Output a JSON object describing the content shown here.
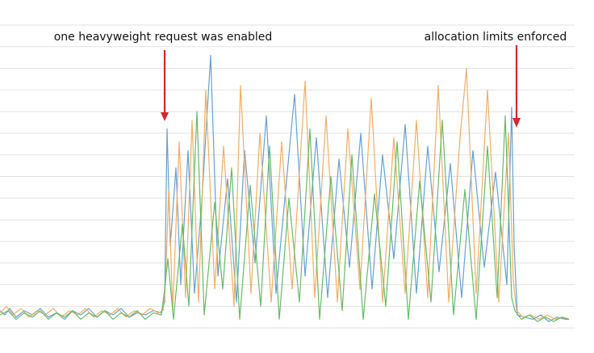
{
  "chart_data": {
    "type": "line",
    "title": "",
    "xlabel": "",
    "ylabel": "",
    "ylim": [
      0,
      100
    ],
    "grid": true,
    "legend": "none",
    "annotations": [
      {
        "text": "one heavyweight request was enabled",
        "at_x": 204
      },
      {
        "text": "allocation limits enforced",
        "at_x": 637
      }
    ],
    "colors": {
      "blue": "#5b9bd5",
      "orange": "#f4a95a",
      "green": "#5cb85c",
      "arrow": "#d9262b",
      "grid": "#e2e2e2"
    },
    "phases": [
      {
        "x_start": 0,
        "x_end": 204,
        "level": "low"
      },
      {
        "x_start": 204,
        "x_end": 637,
        "level": "high"
      },
      {
        "x_start": 637,
        "x_end": 705,
        "level": "low"
      }
    ],
    "series": [
      {
        "color": "blue",
        "values": [
          {
            "x": 0,
            "y": 8
          },
          {
            "x": 6,
            "y": 6
          },
          {
            "x": 12,
            "y": 9
          },
          {
            "x": 20,
            "y": 5
          },
          {
            "x": 30,
            "y": 8
          },
          {
            "x": 40,
            "y": 6
          },
          {
            "x": 50,
            "y": 9
          },
          {
            "x": 60,
            "y": 5
          },
          {
            "x": 70,
            "y": 7
          },
          {
            "x": 80,
            "y": 4
          },
          {
            "x": 90,
            "y": 8
          },
          {
            "x": 100,
            "y": 6
          },
          {
            "x": 110,
            "y": 9
          },
          {
            "x": 120,
            "y": 5
          },
          {
            "x": 130,
            "y": 8
          },
          {
            "x": 140,
            "y": 6
          },
          {
            "x": 150,
            "y": 9
          },
          {
            "x": 160,
            "y": 5
          },
          {
            "x": 170,
            "y": 7
          },
          {
            "x": 180,
            "y": 6
          },
          {
            "x": 190,
            "y": 8
          },
          {
            "x": 200,
            "y": 7
          },
          {
            "x": 204,
            "y": 12
          },
          {
            "x": 207,
            "y": 92
          },
          {
            "x": 211,
            "y": 38
          },
          {
            "x": 218,
            "y": 74
          },
          {
            "x": 224,
            "y": 20
          },
          {
            "x": 233,
            "y": 82
          },
          {
            "x": 241,
            "y": 16
          },
          {
            "x": 250,
            "y": 58
          },
          {
            "x": 261,
            "y": 126
          },
          {
            "x": 270,
            "y": 24
          },
          {
            "x": 282,
            "y": 69
          },
          {
            "x": 293,
            "y": 12
          },
          {
            "x": 303,
            "y": 82
          },
          {
            "x": 316,
            "y": 30
          },
          {
            "x": 330,
            "y": 98
          },
          {
            "x": 342,
            "y": 16
          },
          {
            "x": 356,
            "y": 72
          },
          {
            "x": 365,
            "y": 108
          },
          {
            "x": 378,
            "y": 24
          },
          {
            "x": 392,
            "y": 88
          },
          {
            "x": 406,
            "y": 14
          },
          {
            "x": 420,
            "y": 78
          },
          {
            "x": 433,
            "y": 28
          },
          {
            "x": 447,
            "y": 90
          },
          {
            "x": 461,
            "y": 18
          },
          {
            "x": 474,
            "y": 80
          },
          {
            "x": 488,
            "y": 32
          },
          {
            "x": 502,
            "y": 94
          },
          {
            "x": 516,
            "y": 16
          },
          {
            "x": 530,
            "y": 84
          },
          {
            "x": 544,
            "y": 26
          },
          {
            "x": 558,
            "y": 76
          },
          {
            "x": 572,
            "y": 14
          },
          {
            "x": 586,
            "y": 82
          },
          {
            "x": 600,
            "y": 28
          },
          {
            "x": 614,
            "y": 72
          },
          {
            "x": 628,
            "y": 20
          },
          {
            "x": 634,
            "y": 102
          },
          {
            "x": 637,
            "y": 38
          },
          {
            "x": 641,
            "y": 6
          },
          {
            "x": 650,
            "y": 5
          },
          {
            "x": 660,
            "y": 4
          },
          {
            "x": 670,
            "y": 6
          },
          {
            "x": 680,
            "y": 3
          },
          {
            "x": 690,
            "y": 5
          },
          {
            "x": 700,
            "y": 4
          },
          {
            "x": 705,
            "y": 4
          }
        ]
      },
      {
        "color": "orange",
        "values": [
          {
            "x": 0,
            "y": 7
          },
          {
            "x": 8,
            "y": 10
          },
          {
            "x": 16,
            "y": 6
          },
          {
            "x": 26,
            "y": 9
          },
          {
            "x": 36,
            "y": 5
          },
          {
            "x": 46,
            "y": 8
          },
          {
            "x": 56,
            "y": 6
          },
          {
            "x": 66,
            "y": 9
          },
          {
            "x": 76,
            "y": 5
          },
          {
            "x": 86,
            "y": 8
          },
          {
            "x": 96,
            "y": 6
          },
          {
            "x": 106,
            "y": 9
          },
          {
            "x": 116,
            "y": 5
          },
          {
            "x": 126,
            "y": 8
          },
          {
            "x": 136,
            "y": 6
          },
          {
            "x": 146,
            "y": 9
          },
          {
            "x": 156,
            "y": 5
          },
          {
            "x": 166,
            "y": 8
          },
          {
            "x": 176,
            "y": 6
          },
          {
            "x": 186,
            "y": 9
          },
          {
            "x": 196,
            "y": 7
          },
          {
            "x": 202,
            "y": 8
          },
          {
            "x": 205,
            "y": 20
          },
          {
            "x": 209,
            "y": 64
          },
          {
            "x": 214,
            "y": 8
          },
          {
            "x": 222,
            "y": 86
          },
          {
            "x": 230,
            "y": 14
          },
          {
            "x": 238,
            "y": 96
          },
          {
            "x": 246,
            "y": 12
          },
          {
            "x": 255,
            "y": 110
          },
          {
            "x": 266,
            "y": 18
          },
          {
            "x": 277,
            "y": 84
          },
          {
            "x": 290,
            "y": 10
          },
          {
            "x": 298,
            "y": 112
          },
          {
            "x": 311,
            "y": 16
          },
          {
            "x": 322,
            "y": 90
          },
          {
            "x": 336,
            "y": 12
          },
          {
            "x": 349,
            "y": 86
          },
          {
            "x": 362,
            "y": 18
          },
          {
            "x": 378,
            "y": 114
          },
          {
            "x": 390,
            "y": 14
          },
          {
            "x": 404,
            "y": 98
          },
          {
            "x": 418,
            "y": 12
          },
          {
            "x": 431,
            "y": 92
          },
          {
            "x": 446,
            "y": 18
          },
          {
            "x": 460,
            "y": 106
          },
          {
            "x": 474,
            "y": 12
          },
          {
            "x": 488,
            "y": 88
          },
          {
            "x": 502,
            "y": 16
          },
          {
            "x": 516,
            "y": 96
          },
          {
            "x": 530,
            "y": 14
          },
          {
            "x": 543,
            "y": 112
          },
          {
            "x": 556,
            "y": 12
          },
          {
            "x": 570,
            "y": 88
          },
          {
            "x": 578,
            "y": 120
          },
          {
            "x": 590,
            "y": 16
          },
          {
            "x": 604,
            "y": 110
          },
          {
            "x": 618,
            "y": 12
          },
          {
            "x": 630,
            "y": 90
          },
          {
            "x": 636,
            "y": 22
          },
          {
            "x": 640,
            "y": 8
          },
          {
            "x": 648,
            "y": 5
          },
          {
            "x": 658,
            "y": 6
          },
          {
            "x": 668,
            "y": 4
          },
          {
            "x": 678,
            "y": 6
          },
          {
            "x": 688,
            "y": 4
          },
          {
            "x": 698,
            "y": 5
          },
          {
            "x": 705,
            "y": 4
          }
        ]
      },
      {
        "color": "green",
        "values": [
          {
            "x": 0,
            "y": 6
          },
          {
            "x": 10,
            "y": 8
          },
          {
            "x": 20,
            "y": 4
          },
          {
            "x": 30,
            "y": 7
          },
          {
            "x": 40,
            "y": 5
          },
          {
            "x": 50,
            "y": 8
          },
          {
            "x": 60,
            "y": 4
          },
          {
            "x": 70,
            "y": 7
          },
          {
            "x": 80,
            "y": 5
          },
          {
            "x": 90,
            "y": 8
          },
          {
            "x": 100,
            "y": 4
          },
          {
            "x": 110,
            "y": 7
          },
          {
            "x": 120,
            "y": 5
          },
          {
            "x": 130,
            "y": 8
          },
          {
            "x": 140,
            "y": 4
          },
          {
            "x": 150,
            "y": 7
          },
          {
            "x": 160,
            "y": 5
          },
          {
            "x": 170,
            "y": 8
          },
          {
            "x": 180,
            "y": 4
          },
          {
            "x": 190,
            "y": 7
          },
          {
            "x": 200,
            "y": 6
          },
          {
            "x": 204,
            "y": 18
          },
          {
            "x": 208,
            "y": 32
          },
          {
            "x": 215,
            "y": 4
          },
          {
            "x": 226,
            "y": 48
          },
          {
            "x": 234,
            "y": 10
          },
          {
            "x": 244,
            "y": 100
          },
          {
            "x": 253,
            "y": 6
          },
          {
            "x": 266,
            "y": 58
          },
          {
            "x": 276,
            "y": 18
          },
          {
            "x": 287,
            "y": 74
          },
          {
            "x": 297,
            "y": 4
          },
          {
            "x": 310,
            "y": 66
          },
          {
            "x": 323,
            "y": 10
          },
          {
            "x": 334,
            "y": 84
          },
          {
            "x": 346,
            "y": 4
          },
          {
            "x": 358,
            "y": 60
          },
          {
            "x": 371,
            "y": 12
          },
          {
            "x": 384,
            "y": 92
          },
          {
            "x": 396,
            "y": 4
          },
          {
            "x": 410,
            "y": 70
          },
          {
            "x": 424,
            "y": 8
          },
          {
            "x": 436,
            "y": 80
          },
          {
            "x": 450,
            "y": 4
          },
          {
            "x": 464,
            "y": 62
          },
          {
            "x": 478,
            "y": 10
          },
          {
            "x": 492,
            "y": 86
          },
          {
            "x": 506,
            "y": 4
          },
          {
            "x": 520,
            "y": 68
          },
          {
            "x": 534,
            "y": 12
          },
          {
            "x": 548,
            "y": 96
          },
          {
            "x": 562,
            "y": 6
          },
          {
            "x": 576,
            "y": 64
          },
          {
            "x": 590,
            "y": 4
          },
          {
            "x": 604,
            "y": 84
          },
          {
            "x": 616,
            "y": 14
          },
          {
            "x": 626,
            "y": 98
          },
          {
            "x": 634,
            "y": 14
          },
          {
            "x": 638,
            "y": 8
          },
          {
            "x": 646,
            "y": 4
          },
          {
            "x": 656,
            "y": 6
          },
          {
            "x": 666,
            "y": 3
          },
          {
            "x": 676,
            "y": 5
          },
          {
            "x": 686,
            "y": 3
          },
          {
            "x": 696,
            "y": 5
          },
          {
            "x": 705,
            "y": 4
          }
        ]
      }
    ]
  }
}
